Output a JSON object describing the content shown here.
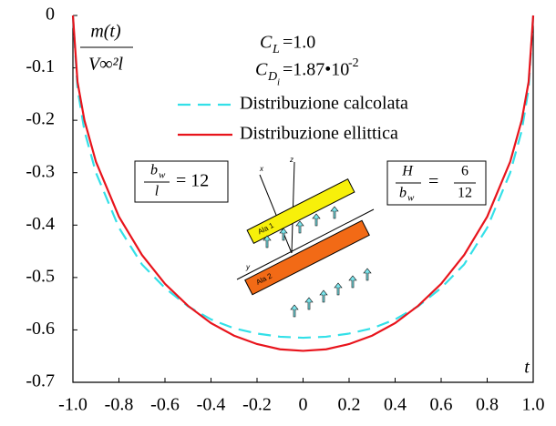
{
  "chart_data": {
    "type": "line",
    "x": [
      -1,
      -0.98,
      -0.95,
      -0.9,
      -0.8,
      -0.7,
      -0.6,
      -0.5,
      -0.4,
      -0.3,
      -0.2,
      -0.1,
      0,
      0.1,
      0.2,
      0.3,
      0.4,
      0.5,
      0.6,
      0.7,
      0.8,
      0.9,
      0.95,
      0.98,
      1
    ],
    "series": [
      {
        "name": "Distribuzione calcolata",
        "color": "#33e0e8",
        "dashed": true,
        "values": [
          0,
          -0.14,
          -0.22,
          -0.3,
          -0.405,
          -0.475,
          -0.52,
          -0.555,
          -0.58,
          -0.597,
          -0.607,
          -0.613,
          -0.615,
          -0.613,
          -0.607,
          -0.597,
          -0.58,
          -0.555,
          -0.52,
          -0.475,
          -0.405,
          -0.3,
          -0.22,
          -0.14,
          0
        ]
      },
      {
        "name": "Distribuzione ellittica",
        "color": "#e8141c",
        "dashed": false,
        "values": [
          0,
          -0.127,
          -0.2,
          -0.279,
          -0.384,
          -0.457,
          -0.512,
          -0.554,
          -0.587,
          -0.611,
          -0.627,
          -0.637,
          -0.64,
          -0.637,
          -0.627,
          -0.611,
          -0.587,
          -0.554,
          -0.512,
          -0.457,
          -0.384,
          -0.279,
          -0.2,
          -0.127,
          0
        ]
      }
    ],
    "xlim": [
      -1,
      1
    ],
    "ylim": [
      -0.7,
      0
    ],
    "xticks": [
      {
        "value": -1,
        "label": "-1.0"
      },
      -0.8,
      -0.6,
      -0.4,
      -0.2,
      0,
      0.2,
      0.4,
      0.6,
      0.8,
      {
        "value": 1,
        "label": "1.0"
      }
    ],
    "yticks": [
      0,
      -0.1,
      -0.2,
      -0.3,
      -0.4,
      -0.5,
      -0.6,
      -0.7
    ],
    "x_label": "t",
    "y_label": {
      "numerator": "m(t)",
      "denominator": "V∞²l"
    },
    "legend": "upper center",
    "annotations": {
      "lift": {
        "symbol": "C",
        "subscript": "L",
        "text": "=1.0"
      },
      "drag": {
        "symbol": "C",
        "subscript": "D",
        "subsubscript": "i",
        "text": "=1.87•10",
        "exponent": "-2"
      },
      "span_ratio": {
        "numerator": "b",
        "numerator_sub": "w",
        "denominator": "l",
        "text": "= 12"
      },
      "gap_ratio": {
        "numerator": "H",
        "denominator": "b",
        "denominator_sub": "w",
        "equals": "=",
        "value_numerator": "6",
        "value_denominator": "12"
      },
      "diagram": {
        "wing1": "Ala 1",
        "wing2": "Ala 2",
        "x": "x",
        "y": "y",
        "z": "z"
      }
    }
  }
}
